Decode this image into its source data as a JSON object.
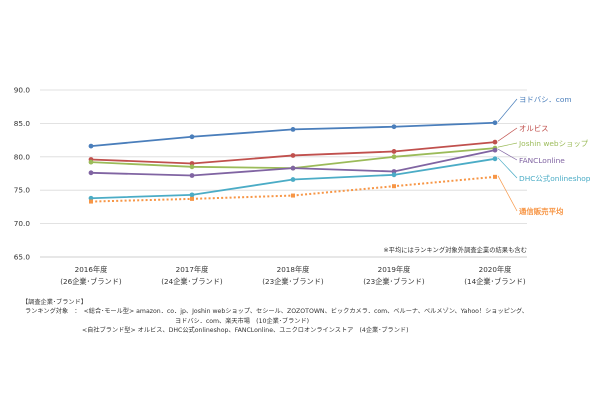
{
  "chart_data": {
    "type": "line",
    "categories": [
      {
        "year": "2016年度",
        "sub": "(26企業･ブランド)"
      },
      {
        "year": "2017年度",
        "sub": "(24企業･ブランド)"
      },
      {
        "year": "2018年度",
        "sub": "(23企業･ブランド)"
      },
      {
        "year": "2019年度",
        "sub": "(23企業･ブランド)"
      },
      {
        "year": "2020年度",
        "sub": "(14企業･ブランド)"
      }
    ],
    "ylim": [
      65,
      90
    ],
    "yticks": [
      "65.0",
      "70.0",
      "75.0",
      "80.0",
      "85.0",
      "90.0"
    ],
    "grid": true,
    "series": [
      {
        "name": "ヨドバシ．com",
        "values": [
          81.6,
          83.0,
          84.1,
          84.5,
          85.1
        ],
        "color": "#4a7ebb",
        "dashed": false
      },
      {
        "name": "オルビス",
        "values": [
          79.6,
          79.0,
          80.2,
          80.8,
          82.2
        ],
        "color": "#c0504d",
        "dashed": false
      },
      {
        "name": "Joshin webショップ",
        "values": [
          79.2,
          78.5,
          78.3,
          80.0,
          81.3
        ],
        "color": "#9bbb59",
        "dashed": false
      },
      {
        "name": "FANCLonline",
        "values": [
          77.6,
          77.2,
          78.3,
          77.8,
          81.0
        ],
        "color": "#8064a2",
        "dashed": false
      },
      {
        "name": "DHC公式onlineshop",
        "values": [
          73.8,
          74.3,
          76.6,
          77.3,
          79.7
        ],
        "color": "#4bacc6",
        "dashed": false
      },
      {
        "name": "通信販売平均",
        "values": [
          73.3,
          73.7,
          74.2,
          75.6,
          77.0
        ],
        "color": "#f79646",
        "dashed": true
      }
    ],
    "annotation": "※平均にはランキング対象外調査企業の結果も含む"
  },
  "notes": [
    "【調査企業･ブランド】",
    "ランキング対象　：　<総合･モール型> amazon．co．jp、Joshin webショップ、セシール、ZOZOTOWN、ビックカメラ．com、ベルーナ、ベルメゾン、Yahoo！ショッピング、",
    "ヨドバシ．com、楽天市場　(10企業･ブランド)",
    "<自社ブランド型> オルビス、DHC公式onlineshop、FANCLonline、ユニクロオンラインストア　(4企業･ブランド)"
  ]
}
